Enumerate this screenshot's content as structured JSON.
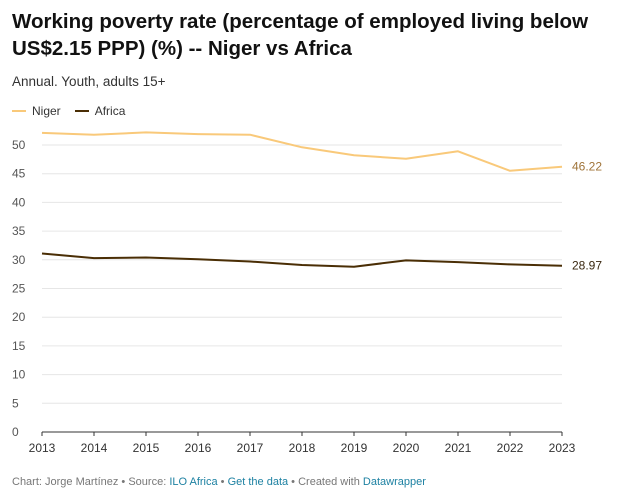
{
  "chart_data": {
    "type": "line",
    "title": "Working poverty rate (percentage of employed living below US$2.15 PPP) (%) -- Niger vs Africa",
    "subtitle": "Annual. Youth, adults 15+",
    "x": [
      "2013",
      "2014",
      "2015",
      "2016",
      "2017",
      "2018",
      "2019",
      "2020",
      "2021",
      "2022",
      "2023"
    ],
    "y_ticks": [
      "0",
      "5",
      "10",
      "15",
      "20",
      "25",
      "30",
      "35",
      "40",
      "45",
      "50"
    ],
    "ylim": [
      0,
      50
    ],
    "grid": true,
    "legend_position": "top-left",
    "series": [
      {
        "name": "Niger",
        "color": "#f9c97a",
        "values": [
          52.1,
          51.8,
          52.2,
          51.9,
          51.8,
          49.6,
          48.2,
          47.6,
          48.9,
          45.5,
          46.22
        ],
        "end_label": "46.22",
        "end_label_color": "#a0743a"
      },
      {
        "name": "Africa",
        "color": "#4a2e05",
        "values": [
          31.1,
          30.3,
          30.4,
          30.1,
          29.7,
          29.1,
          28.8,
          29.9,
          29.6,
          29.2,
          28.97
        ],
        "end_label": "28.97",
        "end_label_color": "#3a2810"
      }
    ]
  },
  "footer": {
    "chart_by": "Chart: Jorge Martínez",
    "sep1": " • Source: ",
    "source": "ILO Africa",
    "sep2": " • ",
    "get_data": "Get the data",
    "sep3": " • Created with ",
    "tool": "Datawrapper"
  }
}
